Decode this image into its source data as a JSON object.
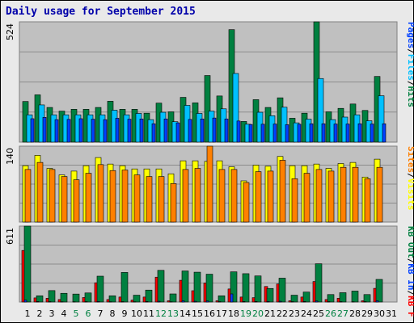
{
  "title": "Daily usage for September 2015",
  "colors": {
    "hits": "#008040",
    "files": "#00c0ff",
    "pages": "#0040ff",
    "visits": "#ffff00",
    "sites": "#ff8000",
    "kbin": "#0040ff",
    "kbout": "#008040",
    "kbf": "#ff0000",
    "plot_bg": "#c0c0c0",
    "frame_bg": "#e9e9e9"
  },
  "chart_data": [
    {
      "type": "bar",
      "panel": "hits",
      "y_max_label": "524",
      "ylim": [
        0,
        524
      ],
      "categories": [
        "1",
        "2",
        "3",
        "4",
        "5",
        "6",
        "7",
        "8",
        "9",
        "10",
        "11",
        "12",
        "13",
        "14",
        "15",
        "16",
        "17",
        "18",
        "19",
        "20",
        "21",
        "22",
        "23",
        "24",
        "25",
        "26",
        "27",
        "28",
        "29",
        "30",
        "31"
      ],
      "weekend_days": [
        "5",
        "6",
        "12",
        "13",
        "19",
        "20",
        "26",
        "27"
      ],
      "side_label_parts": [
        {
          "text": "Hits",
          "color": "#008040"
        },
        {
          "text": "/",
          "color": "#000000"
        },
        {
          "text": "Files",
          "color": "#00c0ff"
        },
        {
          "text": "/",
          "color": "#000000"
        },
        {
          "text": "Pages",
          "color": "#0040ff"
        }
      ],
      "series": [
        {
          "name": "Hits",
          "color": "#008040",
          "values": [
            177,
            206,
            151,
            135,
            143,
            143,
            151,
            178,
            143,
            143,
            126,
            170,
            132,
            195,
            171,
            290,
            201,
            490,
            90,
            185,
            151,
            193,
            104,
            126,
            524,
            132,
            147,
            166,
            138,
            286,
            0
          ]
        },
        {
          "name": "Files",
          "color": "#00c0ff",
          "values": [
            119,
            162,
            119,
            119,
            119,
            119,
            119,
            139,
            119,
            125,
            98,
            130,
            89,
            160,
            125,
            135,
            145,
            299,
            78,
            130,
            115,
            152,
            84,
            100,
            277,
            98,
            109,
            119,
            93,
            202,
            0
          ]
        },
        {
          "name": "Pages",
          "color": "#0040ff",
          "values": [
            102,
            108,
            98,
            99,
            102,
            100,
            98,
            104,
            100,
            101,
            80,
            101,
            84,
            99,
            101,
            105,
            101,
            92,
            77,
            78,
            79,
            76,
            78,
            80,
            80,
            79,
            79,
            80,
            79,
            80,
            0
          ]
        }
      ]
    },
    {
      "type": "bar",
      "panel": "visits",
      "y_max_label": "140",
      "ylim": [
        0,
        140
      ],
      "categories": [
        "1",
        "2",
        "3",
        "4",
        "5",
        "6",
        "7",
        "8",
        "9",
        "10",
        "11",
        "12",
        "13",
        "14",
        "15",
        "16",
        "17",
        "18",
        "19",
        "20",
        "21",
        "22",
        "23",
        "24",
        "25",
        "26",
        "27",
        "28",
        "29",
        "30",
        "31"
      ],
      "side_label_parts": [
        {
          "text": "Visits",
          "color": "#ffff00"
        },
        {
          "text": "/",
          "color": "#000000"
        },
        {
          "text": "Sites",
          "color": "#ff8000"
        }
      ],
      "series": [
        {
          "name": "Visits",
          "color": "#ffff00",
          "values": [
            104,
            123,
            99,
            87,
            94,
            104,
            119,
            107,
            104,
            98,
            98,
            98,
            89,
            113,
            113,
            112,
            113,
            102,
            76,
            105,
            103,
            121,
            104,
            104,
            107,
            99,
            108,
            110,
            83,
            116,
            0
          ]
        },
        {
          "name": "Sites",
          "color": "#ff8000",
          "values": [
            97,
            110,
            97,
            84,
            78,
            90,
            106,
            95,
            96,
            87,
            84,
            84,
            71,
            97,
            99,
            140,
            97,
            97,
            73,
            93,
            94,
            114,
            80,
            90,
            97,
            94,
            101,
            101,
            80,
            101,
            0
          ]
        }
      ]
    },
    {
      "type": "bar",
      "panel": "kbytes",
      "y_max_label": "611",
      "ylim": [
        0,
        611
      ],
      "categories": [
        "1",
        "2",
        "3",
        "4",
        "5",
        "6",
        "7",
        "8",
        "9",
        "10",
        "11",
        "12",
        "13",
        "14",
        "15",
        "16",
        "17",
        "18",
        "19",
        "20",
        "21",
        "22",
        "23",
        "24",
        "25",
        "26",
        "27",
        "28",
        "29",
        "30",
        "31"
      ],
      "side_label_parts": [
        {
          "text": "KB F",
          "color": "#ff0000"
        },
        {
          "text": "/",
          "color": "#000000"
        },
        {
          "text": "KB In",
          "color": "#0040ff"
        },
        {
          "text": "/",
          "color": "#000000"
        },
        {
          "text": "KB Out",
          "color": "#008040"
        }
      ],
      "series": [
        {
          "name": "KB F",
          "color": "#ff0000",
          "values": [
            415,
            33,
            30,
            20,
            0,
            36,
            155,
            20,
            40,
            15,
            40,
            200,
            10,
            175,
            91,
            153,
            10,
            105,
            40,
            35,
            125,
            145,
            10,
            40,
            165,
            20,
            30,
            0,
            10,
            110,
            0
          ]
        },
        {
          "name": "KB In",
          "color": "#0040ff",
          "values": [
            15,
            4,
            3,
            2,
            2,
            3,
            5,
            2,
            3,
            2,
            4,
            6,
            2,
            10,
            6,
            8,
            3,
            65,
            4,
            4,
            5,
            6,
            3,
            4,
            8,
            3,
            3,
            2,
            3,
            10,
            0
          ]
        },
        {
          "name": "KB Out",
          "color": "#008040",
          "values": [
            611,
            50,
            92,
            70,
            64,
            73,
            208,
            50,
            238,
            55,
            96,
            255,
            65,
            250,
            240,
            224,
            50,
            243,
            228,
            210,
            109,
            192,
            55,
            80,
            308,
            60,
            75,
            88,
            60,
            182,
            0
          ]
        }
      ]
    }
  ]
}
